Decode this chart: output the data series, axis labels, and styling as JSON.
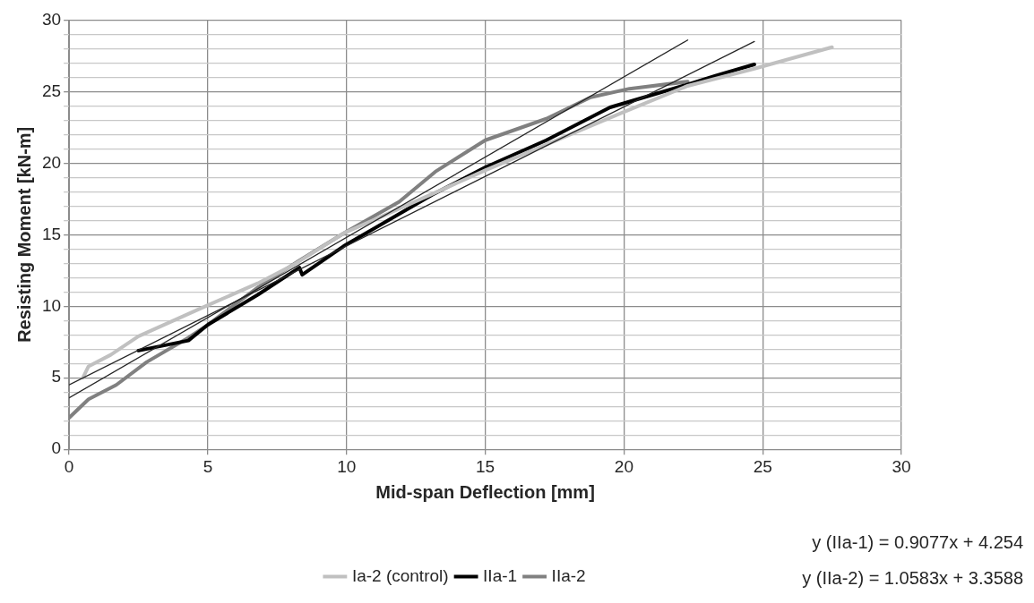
{
  "chart_data": {
    "type": "line",
    "xlabel": "Mid-span Deflection [mm]",
    "ylabel": "Resisting Moment [kN-m]",
    "xlim": [
      0,
      30
    ],
    "xticks": [
      0,
      5,
      10,
      15,
      20,
      25,
      30
    ],
    "ylim": [
      0,
      30
    ],
    "yticks": [
      0,
      {
        "value": 1,
        "label": null
      },
      {
        "value": 2,
        "label": null
      },
      {
        "value": 3,
        "label": null
      },
      {
        "value": 4,
        "label": null
      },
      5,
      {
        "value": 6,
        "label": null
      },
      {
        "value": 7,
        "label": null
      },
      {
        "value": 8,
        "label": null
      },
      {
        "value": 9,
        "label": null
      },
      10,
      {
        "value": 11,
        "label": null
      },
      {
        "value": 12,
        "label": null
      },
      {
        "value": 13,
        "label": null
      },
      {
        "value": 14,
        "label": null
      },
      15,
      {
        "value": 16,
        "label": null
      },
      {
        "value": 17,
        "label": null
      },
      {
        "value": 18,
        "label": null
      },
      {
        "value": 19,
        "label": null
      },
      20,
      {
        "value": 21,
        "label": null
      },
      {
        "value": 22,
        "label": null
      },
      {
        "value": 23,
        "label": null
      },
      {
        "value": 24,
        "label": null
      },
      25,
      {
        "value": 26,
        "label": null
      },
      {
        "value": 27,
        "label": null
      },
      {
        "value": 28,
        "label": null
      },
      {
        "value": 29,
        "label": null
      },
      30
    ],
    "grid": true,
    "legend": "bottom",
    "marker": "none",
    "line_style": "solid",
    "annotations": [
      "y (IIa-1) = 0.9077x + 4.254",
      "y (IIa-2) = 1.0583x + 3.3588"
    ],
    "series": [
      {
        "name": "Ia-2 (control)",
        "color": "#c0c0c0",
        "x": [
          0.5,
          0.7,
          1.5,
          2.5,
          4.8,
          6.8,
          8.1,
          9.9,
          12,
          15,
          17.2,
          19.9,
          22.3,
          24.7,
          27.5
        ],
        "values": [
          5.0,
          5.8,
          6.6,
          7.9,
          9.9,
          11.6,
          12.9,
          15.1,
          16.9,
          19.5,
          21.3,
          23.5,
          25.4,
          26.6,
          28.1
        ]
      },
      {
        "name": "IIa-1",
        "color": "#000000",
        "x": [
          2.5,
          4.3,
          5.0,
          6.8,
          8.3,
          8.4,
          9.9,
          13.1,
          15,
          17.2,
          19.5,
          22.3,
          23.3,
          24.7
        ],
        "values": [
          6.9,
          7.6,
          8.7,
          10.8,
          12.7,
          12.2,
          14.2,
          17.8,
          19.7,
          21.6,
          23.9,
          25.5,
          26.1,
          26.9
        ]
      },
      {
        "name": "IIa-2",
        "color": "#808080",
        "x": [
          0,
          0.7,
          1.7,
          2.8,
          4.3,
          5.0,
          6.8,
          8.3,
          9.9,
          11.9,
          13.2,
          15,
          17.2,
          18.8,
          20.2,
          22.3
        ],
        "values": [
          2.2,
          3.5,
          4.5,
          6.1,
          7.8,
          8.7,
          11.3,
          13.2,
          15.1,
          17.3,
          19.4,
          21.6,
          23.1,
          24.6,
          25.2,
          25.7
        ]
      },
      {
        "type": "line",
        "color": "#262626",
        "x": [
          0,
          22.3
        ],
        "values": [
          3.6,
          28.6
        ]
      },
      {
        "type": "line",
        "color": "#262626",
        "x": [
          0,
          24.7
        ],
        "values": [
          4.5,
          28.5
        ]
      }
    ]
  }
}
